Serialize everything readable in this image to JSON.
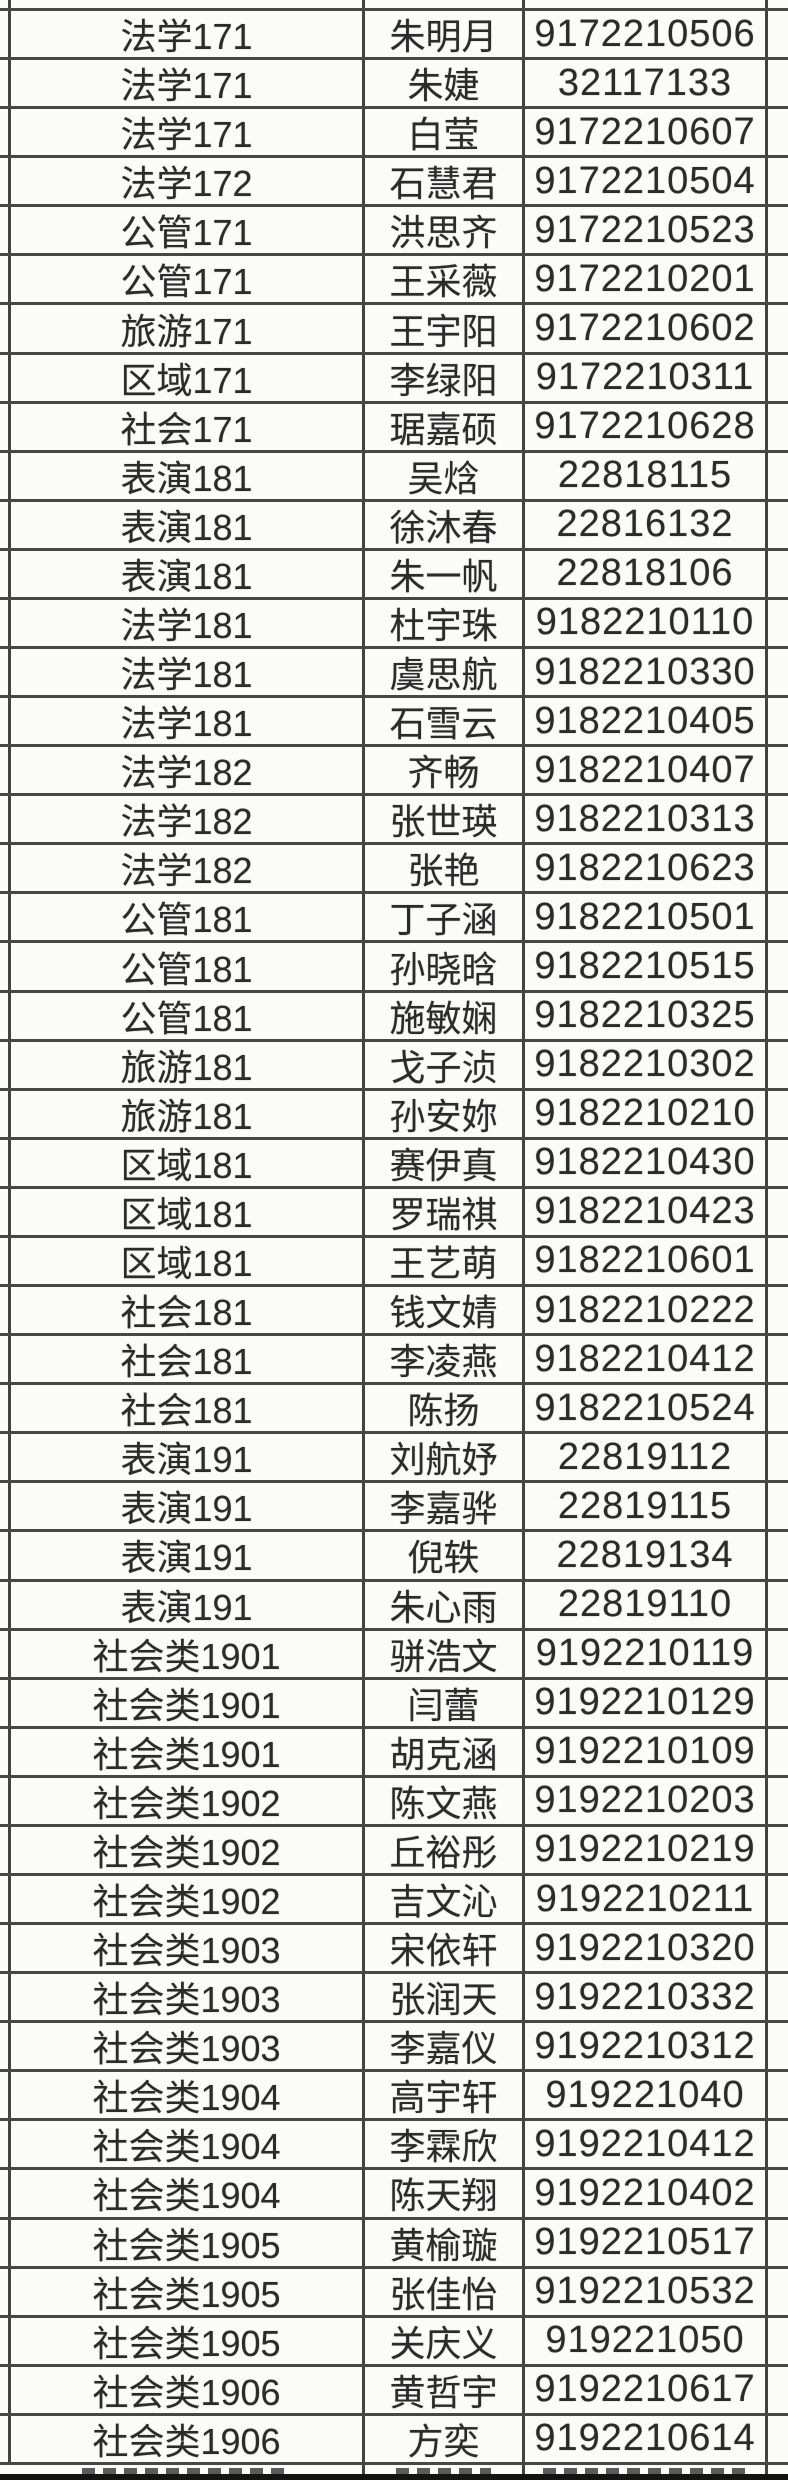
{
  "colors": {
    "grid_line": "#474747",
    "cell_background": "#fbfbfa",
    "text": "#2b2b2b",
    "bottom_bar": "#141414"
  },
  "table": {
    "column_semantics": [
      "class",
      "student-name",
      "student-id"
    ],
    "rows": [
      [
        "法学171",
        "朱明月",
        "9172210506"
      ],
      [
        "法学171",
        "朱婕",
        "32117133"
      ],
      [
        "法学171",
        "白莹",
        "9172210607"
      ],
      [
        "法学172",
        "石慧君",
        "9172210504"
      ],
      [
        "公管171",
        "洪思齐",
        "9172210523"
      ],
      [
        "公管171",
        "王采薇",
        "9172210201"
      ],
      [
        "旅游171",
        "王宇阳",
        "9172210602"
      ],
      [
        "区域171",
        "李绿阳",
        "9172210311"
      ],
      [
        "社会171",
        "琚嘉硕",
        "9172210628"
      ],
      [
        "表演181",
        "吴焓",
        "22818115"
      ],
      [
        "表演181",
        "徐沐春",
        "22816132"
      ],
      [
        "表演181",
        "朱一帆",
        "22818106"
      ],
      [
        "法学181",
        "杜宇珠",
        "9182210110"
      ],
      [
        "法学181",
        "虞思航",
        "9182210330"
      ],
      [
        "法学181",
        "石雪云",
        "9182210405"
      ],
      [
        "法学182",
        "齐畅",
        "9182210407"
      ],
      [
        "法学182",
        "张世瑛",
        "9182210313"
      ],
      [
        "法学182",
        "张艳",
        "9182210623"
      ],
      [
        "公管181",
        "丁子涵",
        "9182210501"
      ],
      [
        "公管181",
        "孙晓晗",
        "9182210515"
      ],
      [
        "公管181",
        "施敏娴",
        "9182210325"
      ],
      [
        "旅游181",
        "戈子浈",
        "9182210302"
      ],
      [
        "旅游181",
        "孙安妳",
        "9182210210"
      ],
      [
        "区域181",
        "赛伊真",
        "9182210430"
      ],
      [
        "区域181",
        "罗瑞祺",
        "9182210423"
      ],
      [
        "区域181",
        "王艺萌",
        "9182210601"
      ],
      [
        "社会181",
        "钱文婧",
        "9182210222"
      ],
      [
        "社会181",
        "李凌燕",
        "9182210412"
      ],
      [
        "社会181",
        "陈扬",
        "9182210524"
      ],
      [
        "表演191",
        "刘航妤",
        "22819112"
      ],
      [
        "表演191",
        "李嘉骅",
        "22819115"
      ],
      [
        "表演191",
        "倪轶",
        "22819134"
      ],
      [
        "表演191",
        "朱心雨",
        "22819110"
      ],
      [
        "社会类1901",
        "骈浩文",
        "9192210119"
      ],
      [
        "社会类1901",
        "闫蕾",
        "9192210129"
      ],
      [
        "社会类1901",
        "胡克涵",
        "9192210109"
      ],
      [
        "社会类1902",
        "陈文燕",
        "9192210203"
      ],
      [
        "社会类1902",
        "丘裕彤",
        "9192210219"
      ],
      [
        "社会类1902",
        "吉文沁",
        "9192210211"
      ],
      [
        "社会类1903",
        "宋依轩",
        "9192210320"
      ],
      [
        "社会类1903",
        "张润天",
        "9192210332"
      ],
      [
        "社会类1903",
        "李嘉仪",
        "9192210312"
      ],
      [
        "社会类1904",
        "高宇轩",
        "919221040"
      ],
      [
        "社会类1904",
        "李霖欣",
        "9192210412"
      ],
      [
        "社会类1904",
        "陈天翔",
        "9192210402"
      ],
      [
        "社会类1905",
        "黄榆璇",
        "9192210517"
      ],
      [
        "社会类1905",
        "张佳怡",
        "9192210532"
      ],
      [
        "社会类1905",
        "关庆义",
        "919221050"
      ],
      [
        "社会类1906",
        "黄哲宇",
        "9192210617"
      ],
      [
        "社会类1906",
        "方奕",
        "9192210614"
      ]
    ],
    "cropped_row_top_visible": true,
    "cropped_row_bottom_visible": true
  }
}
